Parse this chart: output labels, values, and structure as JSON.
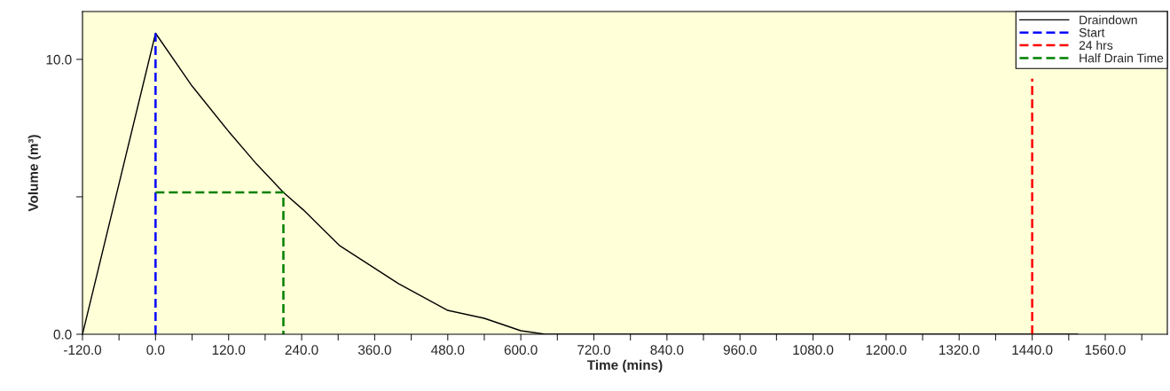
{
  "chart_data": {
    "type": "line",
    "xlabel": "Time (mins)",
    "ylabel": "Volume (m³)",
    "xlim": [
      -120,
      1662
    ],
    "ylim": [
      0,
      11.74
    ],
    "xticks": [
      {
        "value": -120,
        "label": "-120.0"
      },
      {
        "value": -60,
        "label": null
      },
      {
        "value": 0,
        "label": "0.0"
      },
      {
        "value": 60,
        "label": null
      },
      {
        "value": 120,
        "label": "120.0"
      },
      {
        "value": 180,
        "label": null
      },
      {
        "value": 240,
        "label": "240.0"
      },
      {
        "value": 300,
        "label": null
      },
      {
        "value": 360,
        "label": "360.0"
      },
      {
        "value": 420,
        "label": null
      },
      {
        "value": 480,
        "label": "480.0"
      },
      {
        "value": 540,
        "label": null
      },
      {
        "value": 600,
        "label": "600.0"
      },
      {
        "value": 660,
        "label": null
      },
      {
        "value": 720,
        "label": "720.0"
      },
      {
        "value": 780,
        "label": null
      },
      {
        "value": 840,
        "label": "840.0"
      },
      {
        "value": 900,
        "label": null
      },
      {
        "value": 960,
        "label": "960.0"
      },
      {
        "value": 1020,
        "label": null
      },
      {
        "value": 1080,
        "label": "1080.0"
      },
      {
        "value": 1140,
        "label": null
      },
      {
        "value": 1200,
        "label": "1200.0"
      },
      {
        "value": 1260,
        "label": null
      },
      {
        "value": 1320,
        "label": "1320.0"
      },
      {
        "value": 1380,
        "label": null
      },
      {
        "value": 1440,
        "label": "1440.0"
      },
      {
        "value": 1500,
        "label": null
      },
      {
        "value": 1560,
        "label": "1560.0"
      },
      {
        "value": 1620,
        "label": null
      }
    ],
    "yticks": [
      {
        "value": 0,
        "label": "0.0"
      },
      {
        "value": 5,
        "label": null
      },
      {
        "value": 10,
        "label": "10.0"
      }
    ],
    "grid": false,
    "legend": "top right",
    "marker": "none",
    "series": [
      {
        "name": "Draindown",
        "color": "#000000",
        "line_style": "solid",
        "x": [
          -120,
          0,
          60,
          120,
          166,
          210,
          243,
          302,
          399,
          480,
          540,
          600,
          640,
          1515
        ],
        "values": [
          0,
          10.95,
          9.03,
          7.38,
          6.19,
          5.16,
          4.52,
          3.23,
          1.84,
          0.87,
          0.58,
          0.13,
          0,
          0
        ]
      },
      {
        "name": "Start",
        "color": "#0000ff",
        "line_style": "dashed",
        "x": [
          0,
          0
        ],
        "values": [
          0,
          10.95
        ]
      },
      {
        "name": "24 hrs",
        "color": "#ff0000",
        "line_style": "dashed",
        "x": [
          1440,
          1440
        ],
        "values": [
          0,
          9.3
        ]
      },
      {
        "name": "Half Drain Time",
        "color": "#008000",
        "line_style": "dashed",
        "x": [
          0,
          210,
          210
        ],
        "values": [
          5.16,
          5.16,
          0
        ]
      }
    ]
  }
}
